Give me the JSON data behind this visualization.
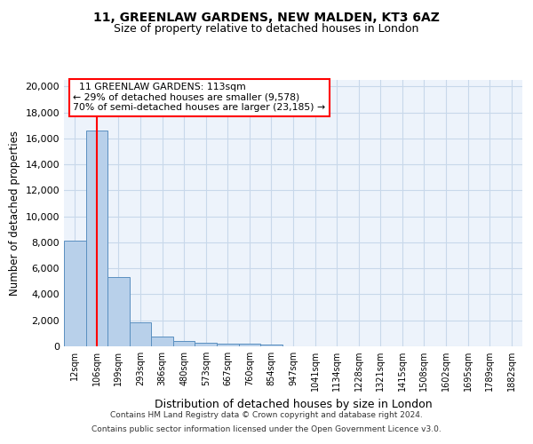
{
  "title_line1": "11, GREENLAW GARDENS, NEW MALDEN, KT3 6AZ",
  "title_line2": "Size of property relative to detached houses in London",
  "xlabel": "Distribution of detached houses by size in London",
  "ylabel": "Number of detached properties",
  "bin_labels": [
    "12sqm",
    "106sqm",
    "199sqm",
    "293sqm",
    "386sqm",
    "480sqm",
    "573sqm",
    "667sqm",
    "760sqm",
    "854sqm",
    "947sqm",
    "1041sqm",
    "1134sqm",
    "1228sqm",
    "1321sqm",
    "1415sqm",
    "1508sqm",
    "1602sqm",
    "1695sqm",
    "1789sqm",
    "1882sqm"
  ],
  "bar_heights": [
    8100,
    16600,
    5300,
    1850,
    750,
    380,
    280,
    220,
    180,
    140,
    0,
    0,
    0,
    0,
    0,
    0,
    0,
    0,
    0,
    0,
    0
  ],
  "bar_color": "#b8d0ea",
  "bar_edge_color": "#5a8fc0",
  "grid_color": "#c8d8ea",
  "bg_color": "#edf3fb",
  "annotation_line1": "11 GREENLAW GARDENS: 113sqm",
  "annotation_line2": "← 29% of detached houses are smaller (9,578)",
  "annotation_line3": "70% of semi-detached houses are larger (23,185) →",
  "footer_line1": "Contains HM Land Registry data © Crown copyright and database right 2024.",
  "footer_line2": "Contains public sector information licensed under the Open Government Licence v3.0.",
  "ylim": [
    0,
    20500
  ],
  "yticks": [
    0,
    2000,
    4000,
    6000,
    8000,
    10000,
    12000,
    14000,
    16000,
    18000,
    20000
  ]
}
